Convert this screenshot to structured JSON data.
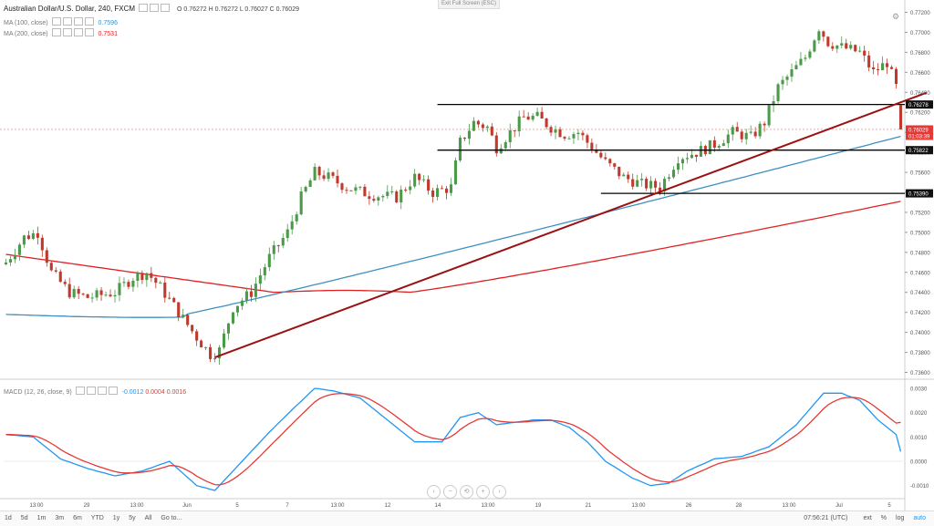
{
  "header": {
    "symbol": "Australian Dollar/U.S. Dollar, 240, FXCM",
    "ohlc": "O 0.76272 H 0.76272 L 0.76027 C 0.76029",
    "ma100_label": "MA (100, close)",
    "ma100_value": "0.7596",
    "ma200_label": "MA (200, close)",
    "ma200_value": "0.7531",
    "exit_fullscreen": "Exit Full Screen (ESC)"
  },
  "macd_legend": {
    "label": "MACD (12, 26, close, 9)",
    "v1": "-0.0012",
    "v2": "0.0004",
    "v3": "0.0016"
  },
  "bottom": {
    "ranges": [
      "1d",
      "5d",
      "1m",
      "3m",
      "6m",
      "YTD",
      "1y",
      "5y",
      "All",
      "Go to..."
    ],
    "clock": "07:56:21 (UTC)",
    "toggles": [
      "ext",
      "%",
      "log",
      "auto"
    ]
  },
  "colors": {
    "up": "#4a9a4a",
    "down": "#c0392b",
    "ma100": "#3d8fc0",
    "ma200": "#e02020",
    "trend": "#9b1010",
    "macd": "#2196f3",
    "signal": "#e53935"
  },
  "chart_data": [
    {
      "type": "candlestick",
      "title": "Australian Dollar/U.S. Dollar, 240, FXCM",
      "ylim": [
        0.7355,
        0.7725
      ],
      "y_ticks": [
        "0.73600",
        "0.73800",
        "0.74000",
        "0.74200",
        "0.74400",
        "0.74600",
        "0.74800",
        "0.75000",
        "0.75200",
        "0.75400",
        "0.75600",
        "0.75800",
        "0.76000",
        "0.76200",
        "0.76400",
        "0.76600",
        "0.76800",
        "0.77000",
        "0.77200"
      ],
      "x_ticks": [
        "13:00",
        "29",
        "13:00",
        "Jun",
        "5",
        "7",
        "13:00",
        "12",
        "14",
        "13:00",
        "19",
        "21",
        "13:00",
        "26",
        "28",
        "13:00",
        "Jul",
        "5"
      ],
      "price_labels": [
        {
          "text": "0.76278",
          "value": 0.76278,
          "kind": "level"
        },
        {
          "text": "0.76029",
          "value": 0.76029,
          "kind": "last"
        },
        {
          "text": "01:03:39",
          "value": 0.75965,
          "kind": "countdown"
        },
        {
          "text": "0.75822",
          "value": 0.75822,
          "kind": "level"
        },
        {
          "text": "0.75390",
          "value": 0.7539,
          "kind": "level"
        }
      ],
      "horizontal_lines": [
        {
          "value": 0.76278,
          "from": 95,
          "to": 200
        },
        {
          "value": 0.75822,
          "from": 95,
          "to": 200
        },
        {
          "value": 0.7539,
          "from": 131,
          "to": 200
        }
      ],
      "trendline": {
        "from": {
          "i": 46,
          "v": 0.7375
        },
        "to": {
          "i": 197,
          "v": 0.763
        }
      },
      "candles": [],
      "ma100": [],
      "ma200": []
    },
    {
      "type": "line",
      "title": "MACD (12, 26, close, 9)",
      "ylim": [
        -0.0015,
        0.0033
      ],
      "y_ticks": [
        "0.0030",
        "0.0020",
        "0.0010",
        "0.0000",
        "-0.0010"
      ],
      "series": [
        {
          "name": "MACD",
          "values": []
        },
        {
          "name": "Signal",
          "values": []
        }
      ]
    }
  ]
}
